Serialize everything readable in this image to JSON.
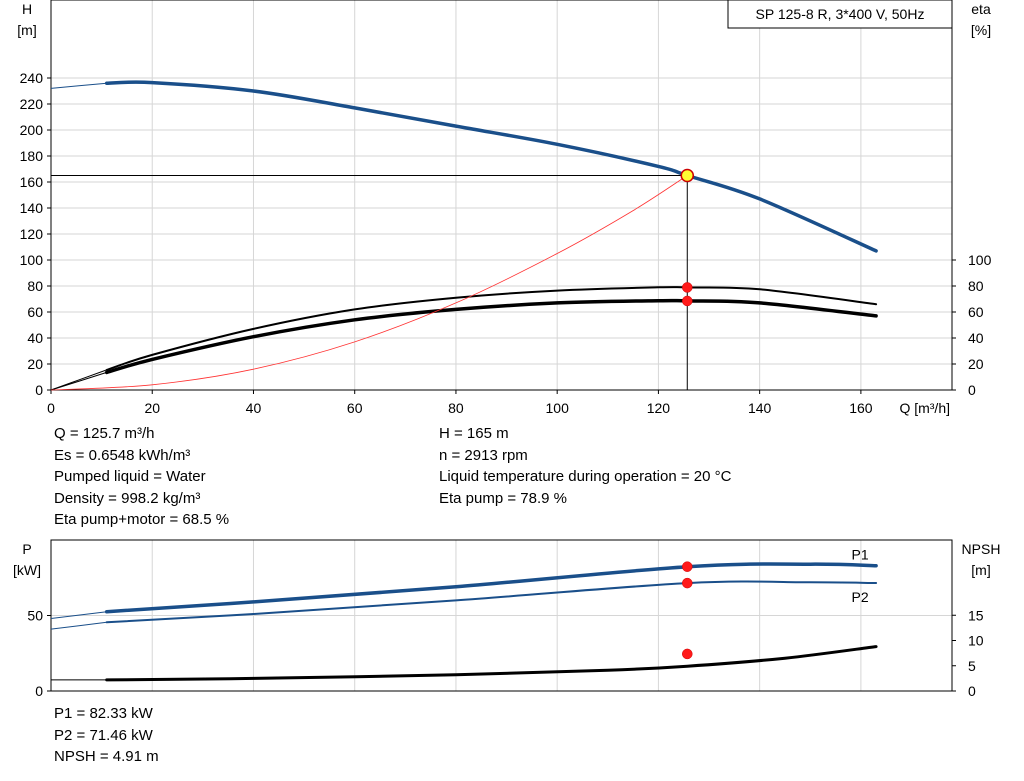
{
  "chart_data": [
    {
      "type": "line",
      "title": "SP 125-8 R, 3*400 V, 50Hz",
      "xlabel": "Q [m³/h]",
      "ylabel": [
        "H",
        "[m]"
      ],
      "ylabel_right": [
        "eta",
        "[%]"
      ],
      "xlim": [
        0,
        178
      ],
      "ylim": [
        0,
        300
      ],
      "ylim_right": [
        0,
        100
      ],
      "x_ticks": [
        0,
        20,
        40,
        60,
        80,
        100,
        120,
        140,
        160
      ],
      "y_ticks": [
        0,
        20,
        40,
        60,
        80,
        100,
        120,
        140,
        160,
        180,
        200,
        220,
        240
      ],
      "y_ticks_right": [
        0,
        20,
        40,
        60,
        80,
        100
      ],
      "grid": true,
      "series": [
        {
          "key": "H",
          "color": "#1a4f8a",
          "width": 3.5,
          "dashed_part_before": 11,
          "x": [
            0,
            11,
            20,
            40,
            60,
            80,
            100,
            120,
            125.7,
            140,
            163
          ],
          "y": [
            232,
            236,
            236.5,
            230,
            217,
            203,
            189,
            172,
            165,
            147,
            107
          ]
        },
        {
          "key": "eta_pump",
          "color": "#000000",
          "width": 2,
          "dashed_part_before": 11,
          "x": [
            0,
            11,
            20,
            40,
            60,
            80,
            100,
            120,
            125.7,
            140,
            163
          ],
          "y": [
            0,
            15.5,
            27,
            47,
            62,
            71,
            76.5,
            79,
            78.9,
            77.5,
            66
          ]
        },
        {
          "key": "eta_total",
          "color": "#000000",
          "width": 3.5,
          "dashed_part_before": 11,
          "x": [
            0,
            11,
            20,
            40,
            60,
            80,
            100,
            120,
            125.7,
            140,
            163
          ],
          "y": [
            0,
            13.5,
            23.5,
            41,
            54,
            62,
            67,
            68.7,
            68.5,
            67,
            57
          ]
        },
        {
          "key": "system",
          "color": "#ff3333",
          "width": 0.8,
          "x": [
            0,
            20,
            40,
            60,
            80,
            100,
            115,
            125.7
          ],
          "y": [
            0,
            4,
            16,
            37,
            67,
            105,
            138,
            165
          ]
        }
      ],
      "duty_point": {
        "x": 125.7,
        "y": 165
      },
      "markers": [
        {
          "x": 125.7,
          "y": 78.9
        },
        {
          "x": 125.7,
          "y": 68.5
        }
      ]
    },
    {
      "type": "line",
      "ylabel": [
        "P",
        "[kW]"
      ],
      "ylabel_right": [
        "NPSH",
        "[m]"
      ],
      "xlim": [
        0,
        178
      ],
      "ylim": [
        0,
        100
      ],
      "ylim_right": [
        0,
        20
      ],
      "y_ticks": [
        0,
        50
      ],
      "y_ticks_right": [
        0,
        5,
        10,
        15
      ],
      "grid": true,
      "series": [
        {
          "key": "P1",
          "name": "P1",
          "color": "#1a4f8a",
          "width": 3.5,
          "dashed_part_before": 11,
          "x": [
            0,
            11,
            40,
            80,
            125.7,
            150,
            163
          ],
          "y": [
            48,
            52.5,
            59,
            69,
            82.33,
            84,
            83
          ]
        },
        {
          "key": "P2",
          "name": "P2",
          "color": "#1a4f8a",
          "width": 2,
          "dashed_part_before": 11,
          "x": [
            0,
            11,
            40,
            80,
            125.7,
            150,
            163
          ],
          "y": [
            41,
            45.5,
            51,
            60,
            71.46,
            72,
            71.5
          ]
        },
        {
          "key": "NPSH",
          "color": "#000000",
          "width": 3,
          "dashed_part_before": 11,
          "x": [
            0,
            11,
            40,
            80,
            110,
            125.7,
            145,
            163
          ],
          "y": [
            2.2,
            2.2,
            2.5,
            3.2,
            4.1,
            4.91,
            6.5,
            8.8
          ]
        }
      ],
      "markers": [
        {
          "x": 125.7,
          "y": 82.33
        },
        {
          "x": 125.7,
          "y": 71.46
        },
        {
          "x": 125.7,
          "y": 24.55
        }
      ]
    }
  ],
  "info_top": {
    "left": [
      "Q = 125.7 m³/h",
      "Es = 0.6548 kWh/m³",
      "Pumped liquid = Water",
      "Density = 998.2 kg/m³",
      "Eta pump+motor = 68.5 %"
    ],
    "right": [
      "H = 165 m",
      "n = 2913 rpm",
      "Liquid temperature during operation = 20 °C",
      "Eta pump = 78.9 %"
    ]
  },
  "info_bottom": [
    "P1 = 82.33 kW",
    "P2 = 71.46 kW",
    "NPSH = 4.91 m"
  ]
}
